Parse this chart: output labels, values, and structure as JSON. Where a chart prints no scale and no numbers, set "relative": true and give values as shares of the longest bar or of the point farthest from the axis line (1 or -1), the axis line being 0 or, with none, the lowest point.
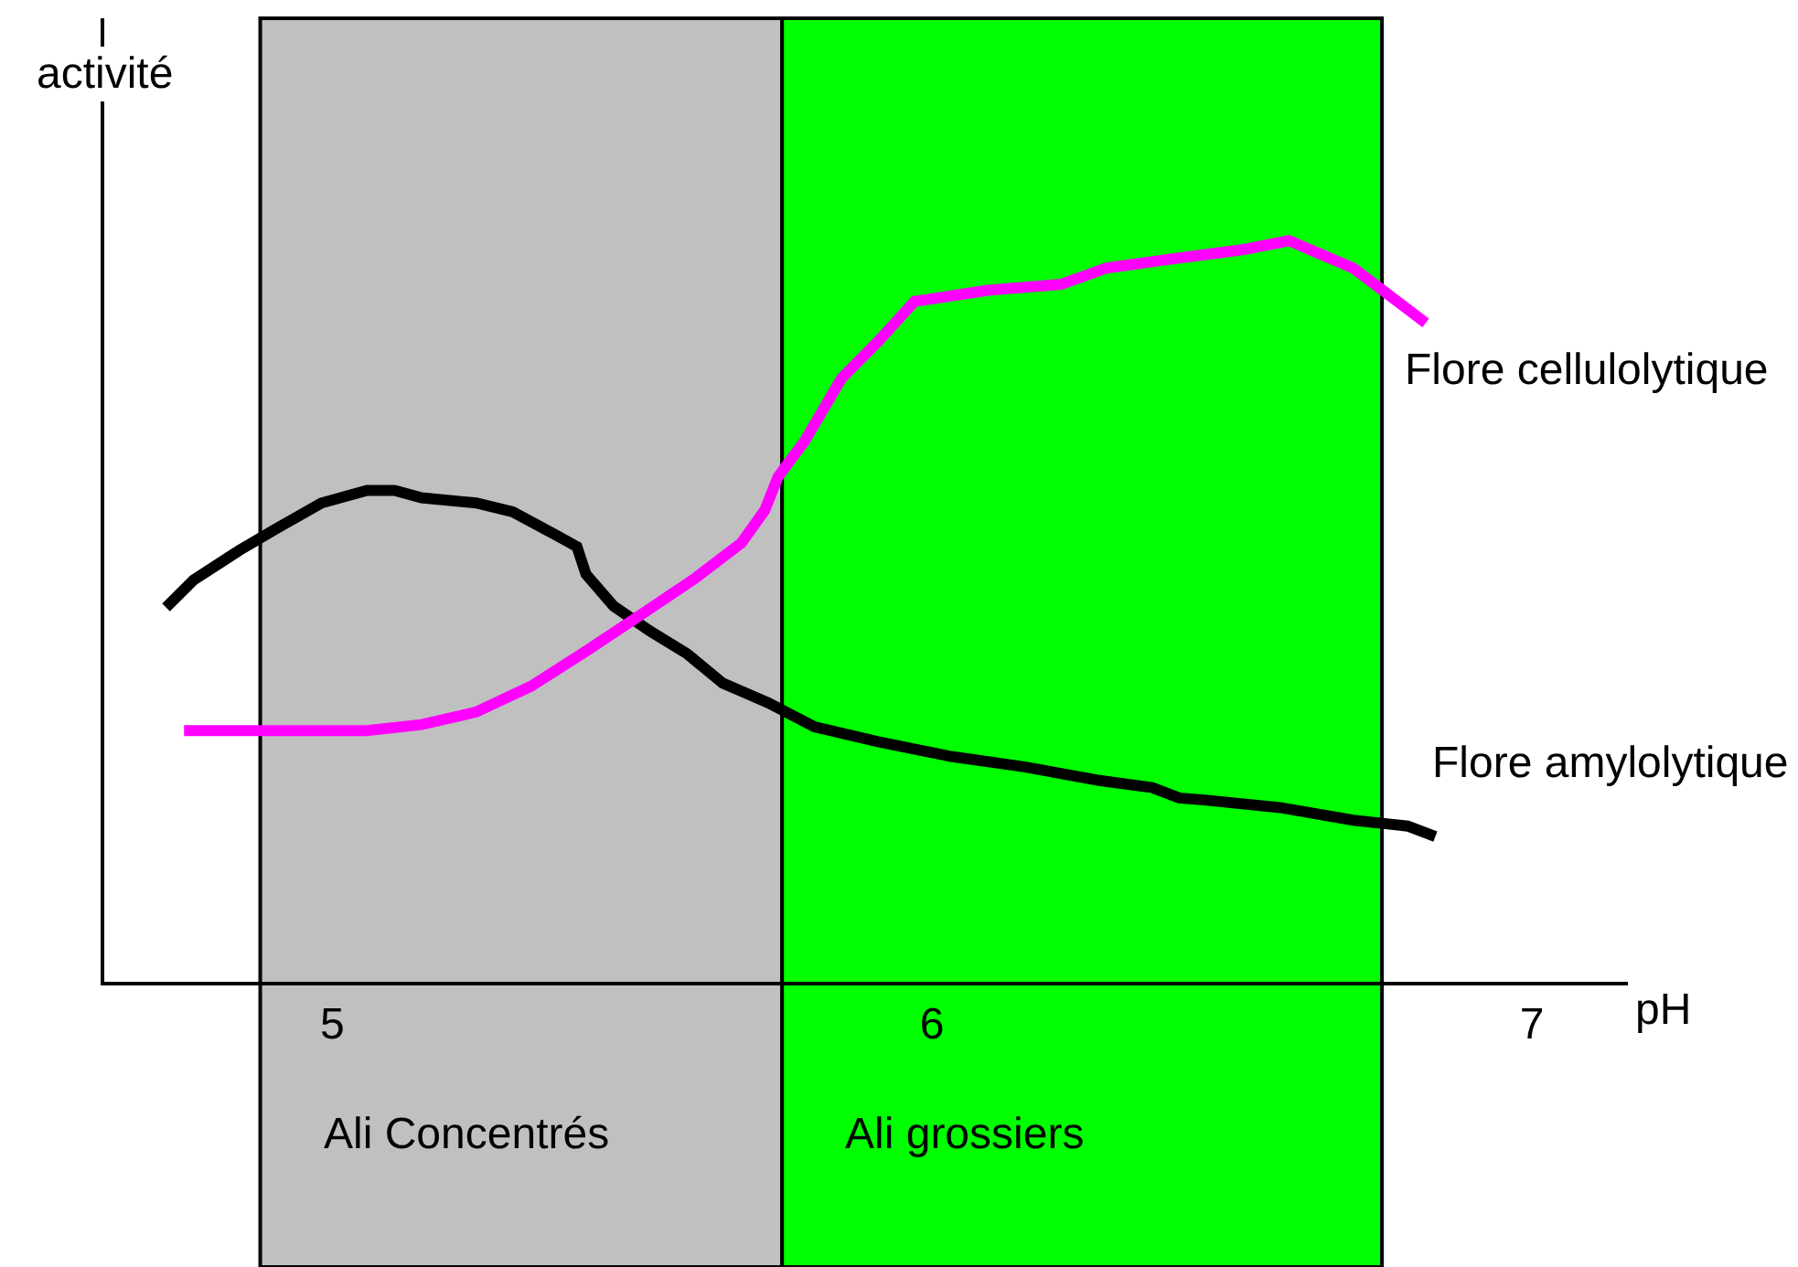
{
  "chart_data": {
    "type": "line",
    "relative": true,
    "xlabel": "pH",
    "ylabel": "activité",
    "xlim": [
      4.62,
      7.16
    ],
    "xticks": [
      5,
      6,
      7
    ],
    "grid": false,
    "legend": false,
    "marker": "none",
    "line_style": "solid",
    "series": [
      {
        "name": "Flore amylolytique",
        "color": "#000000",
        "x": [
          4.723,
          4.769,
          4.845,
          4.906,
          4.982,
          5.058,
          5.104,
          5.149,
          5.24,
          5.301,
          5.377,
          5.408,
          5.423,
          5.469,
          5.53,
          5.591,
          5.651,
          5.728,
          5.804,
          5.91,
          6.032,
          6.154,
          6.276,
          6.367,
          6.412,
          6.458,
          6.58,
          6.702,
          6.793,
          6.839
        ],
        "values": [
          0.505,
          0.542,
          0.582,
          0.611,
          0.646,
          0.663,
          0.663,
          0.653,
          0.646,
          0.634,
          0.601,
          0.587,
          0.55,
          0.507,
          0.473,
          0.443,
          0.403,
          0.376,
          0.344,
          0.324,
          0.304,
          0.29,
          0.272,
          0.262,
          0.248,
          0.245,
          0.235,
          0.218,
          0.21,
          0.196
        ]
      },
      {
        "name": "Flore cellulolytique",
        "color": "#ff00ff",
        "x": [
          4.753,
          5.058,
          5.149,
          5.24,
          5.332,
          5.423,
          5.514,
          5.606,
          5.682,
          5.721,
          5.743,
          5.788,
          5.849,
          5.91,
          5.971,
          6.093,
          6.215,
          6.291,
          6.397,
          6.519,
          6.595,
          6.702,
          6.823
        ],
        "values": [
          0.339,
          0.339,
          0.347,
          0.364,
          0.399,
          0.446,
          0.495,
          0.545,
          0.592,
          0.636,
          0.681,
          0.73,
          0.814,
          0.864,
          0.918,
          0.933,
          0.941,
          0.963,
          0.975,
          0.988,
          1,
          0.963,
          0.889
        ]
      }
    ],
    "bands": [
      {
        "axis": "x",
        "from": 4.88,
        "to": 5.75,
        "color": "#c0c0c0",
        "label": "Ali Concentrés"
      },
      {
        "axis": "x",
        "from": 5.75,
        "to": 6.75,
        "color": "#00ff00",
        "label": "Ali grossiers"
      }
    ]
  }
}
